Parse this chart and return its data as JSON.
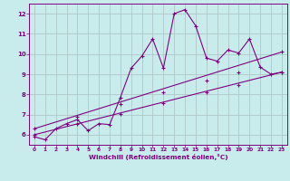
{
  "xlabel": "Windchill (Refroidissement éolien,°C)",
  "bg_color": "#c8ecec",
  "line_color": "#800080",
  "grid_color": "#b0c8c8",
  "xlim": [
    -0.5,
    23.5
  ],
  "ylim": [
    5.5,
    12.5
  ],
  "xticks": [
    0,
    1,
    2,
    3,
    4,
    5,
    6,
    7,
    8,
    9,
    10,
    11,
    12,
    13,
    14,
    15,
    16,
    17,
    18,
    19,
    20,
    21,
    22,
    23
  ],
  "yticks": [
    6,
    7,
    8,
    9,
    10,
    11,
    12
  ],
  "line1_x": [
    0,
    1,
    2,
    3,
    4,
    5,
    6,
    7,
    8,
    9,
    10,
    11,
    12,
    13,
    14,
    15,
    16,
    17,
    18,
    19,
    20,
    21,
    22,
    23
  ],
  "line1_y": [
    5.9,
    5.75,
    6.3,
    6.55,
    6.75,
    6.2,
    6.55,
    6.5,
    7.85,
    9.3,
    9.9,
    10.75,
    9.3,
    12.0,
    12.2,
    11.4,
    9.8,
    9.65,
    10.2,
    10.05,
    10.75,
    9.35,
    9.0,
    9.1
  ],
  "trend1_x": [
    0,
    23
  ],
  "trend1_y": [
    6.3,
    10.1
  ],
  "trend2_x": [
    0,
    23
  ],
  "trend2_y": [
    6.0,
    9.1
  ],
  "trend1_markers_x": [
    0,
    4,
    8,
    12,
    16,
    19,
    23
  ],
  "trend1_markers_y": [
    6.3,
    6.9,
    7.5,
    8.1,
    8.7,
    9.1,
    10.1
  ],
  "trend2_markers_x": [
    0,
    4,
    8,
    12,
    16,
    19,
    23
  ],
  "trend2_markers_y": [
    6.0,
    6.52,
    7.04,
    7.57,
    8.09,
    8.48,
    9.1
  ]
}
